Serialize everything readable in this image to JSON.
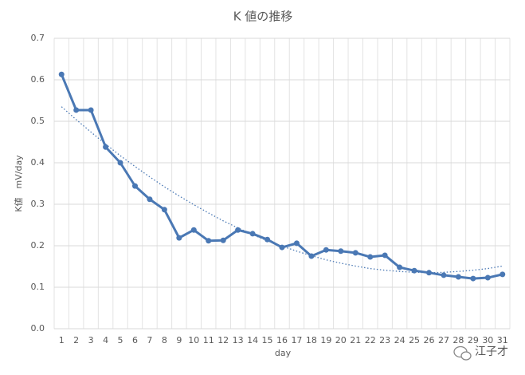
{
  "chart_data": {
    "type": "line",
    "title": "K 値の推移",
    "x_label": "day",
    "y_label": "K値　mV/day",
    "categories": [
      "1",
      "2",
      "3",
      "4",
      "5",
      "6",
      "7",
      "8",
      "9",
      "10",
      "11",
      "12",
      "13",
      "14",
      "15",
      "16",
      "17",
      "18",
      "19",
      "20",
      "21",
      "22",
      "23",
      "24",
      "25",
      "26",
      "27",
      "28",
      "29",
      "30",
      "31"
    ],
    "series": [
      {
        "color": "#4a78b4",
        "values": [
          0.613,
          0.527,
          0.527,
          0.438,
          0.4,
          0.344,
          0.312,
          0.287,
          0.219,
          0.238,
          0.212,
          0.213,
          0.238,
          0.229,
          0.215,
          0.196,
          0.206,
          0.175,
          0.19,
          0.187,
          0.183,
          0.173,
          0.177,
          0.148,
          0.14,
          0.135,
          0.129,
          0.125,
          0.121,
          0.123,
          0.131
        ]
      }
    ],
    "trendline": {
      "color": "#4a78b4",
      "style": "dotted",
      "values": [
        0.535,
        0.504,
        0.474,
        0.445,
        0.417,
        0.391,
        0.366,
        0.342,
        0.32,
        0.299,
        0.279,
        0.26,
        0.243,
        0.227,
        0.212,
        0.199,
        0.187,
        0.176,
        0.166,
        0.158,
        0.151,
        0.145,
        0.141,
        0.138,
        0.136,
        0.135,
        0.136,
        0.138,
        0.141,
        0.145,
        0.151
      ]
    },
    "ylim": [
      0,
      0.7
    ],
    "yticks": [
      {
        "value": 0,
        "label": "0.0"
      },
      0.1,
      0.2,
      0.3,
      0.4,
      0.5,
      0.6,
      0.7
    ],
    "grid": true,
    "watermark": "江子才"
  }
}
